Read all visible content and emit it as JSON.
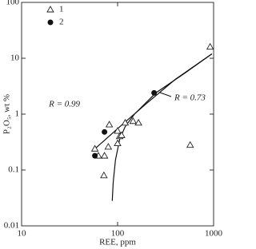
{
  "chart_data": {
    "type": "scatter",
    "xlabel": "REE, ppm",
    "ylabel": "P₂O₅, wt %",
    "xlog": true,
    "ylog": true,
    "xlim": [
      10,
      1000
    ],
    "ylim": [
      0.01,
      100
    ],
    "xticks": [
      10,
      100,
      1000
    ],
    "yticks": [
      0.01,
      0.1,
      1,
      10,
      100
    ],
    "legend": "upper left",
    "series": [
      {
        "name": "1",
        "marker": "triangle",
        "color": "#222222",
        "x": [
          920,
          570,
          58,
          63,
          73,
          72,
          80,
          82,
          100,
          100,
          105,
          110,
          120,
          145,
          165
        ],
        "values": [
          16,
          0.28,
          0.24,
          0.18,
          0.18,
          0.08,
          0.26,
          0.65,
          0.5,
          0.3,
          0.4,
          0.42,
          0.7,
          0.75,
          0.7
        ]
      },
      {
        "name": "2",
        "marker": "circle",
        "color": "#111111",
        "x": [
          58,
          73,
          240
        ],
        "values": [
          0.18,
          0.48,
          2.4
        ]
      }
    ],
    "fits": [
      {
        "label": "R = 0.99",
        "x": [
          55,
          100,
          200,
          400,
          960
        ],
        "values": [
          0.22,
          0.55,
          1.55,
          4.2,
          12
        ]
      },
      {
        "label": "R = 0.73",
        "x": [
          88,
          90,
          95,
          105,
          120,
          150,
          250,
          500,
          960
        ],
        "values": [
          0.028,
          0.06,
          0.15,
          0.35,
          0.6,
          1.0,
          2.4,
          5.4,
          12
        ]
      }
    ]
  }
}
